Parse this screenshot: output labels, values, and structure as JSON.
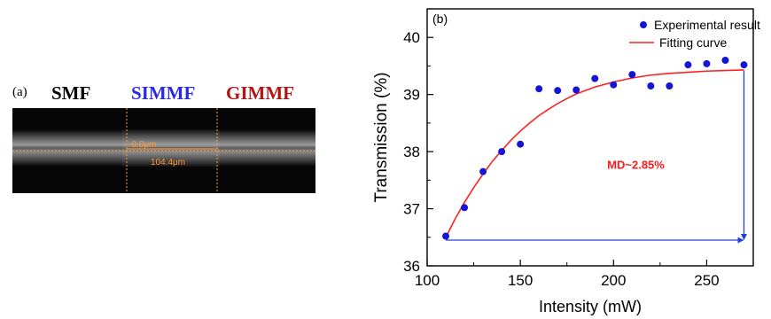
{
  "panel_a": {
    "label": "(a)",
    "fiber_labels": [
      {
        "text": "SMF",
        "color": "#000000"
      },
      {
        "text": "SIMMF",
        "color": "#2a2ae0"
      },
      {
        "text": "GIMMF",
        "color": "#b01515"
      }
    ],
    "measurements": [
      "-0.0μm",
      "104.4μm"
    ],
    "annotation_color": "#ff9933"
  },
  "chart_data": {
    "type": "scatter",
    "panel_label": "(b)",
    "xlabel": "Intensity (mW)",
    "ylabel": "Transmission (%)",
    "xlim": [
      100,
      275
    ],
    "ylim": [
      36,
      40.5
    ],
    "xticks": [
      100,
      150,
      200,
      250
    ],
    "yticks": [
      36,
      37,
      38,
      39,
      40
    ],
    "grid": false,
    "legend_position": "top-right",
    "series": [
      {
        "name": "Experimental result",
        "kind": "scatter",
        "color": "#1515d6",
        "x": [
          110,
          120,
          130,
          140,
          150,
          160,
          170,
          180,
          190,
          200,
          210,
          220,
          230,
          240,
          250,
          260,
          270
        ],
        "y": [
          36.52,
          37.02,
          37.65,
          38.0,
          38.13,
          39.1,
          39.07,
          39.08,
          39.28,
          39.17,
          39.35,
          39.15,
          39.15,
          39.52,
          39.54,
          39.6,
          39.52
        ]
      },
      {
        "name": "Fitting curve",
        "kind": "line",
        "color": "#ff2020",
        "x": [
          110,
          115,
          120,
          125,
          130,
          135,
          140,
          145,
          150,
          155,
          160,
          165,
          170,
          175,
          180,
          185,
          190,
          200,
          210,
          220,
          230,
          240,
          250,
          260,
          270
        ],
        "y": [
          36.5,
          36.82,
          37.11,
          37.37,
          37.61,
          37.83,
          38.02,
          38.2,
          38.36,
          38.5,
          38.63,
          38.74,
          38.84,
          38.93,
          39.01,
          39.07,
          39.13,
          39.22,
          39.29,
          39.34,
          39.37,
          39.39,
          39.41,
          39.42,
          39.43
        ]
      }
    ],
    "annotation": {
      "text": "MD~2.85%",
      "color": "#ff1a1a",
      "x": 212,
      "y": 37.7
    },
    "range_lines": {
      "color": "#2040d0",
      "horizontal": {
        "x1": 110,
        "x2": 270,
        "y": 36.45
      },
      "vertical": {
        "x": 270,
        "y1": 39.42,
        "y2": 36.45
      }
    }
  }
}
